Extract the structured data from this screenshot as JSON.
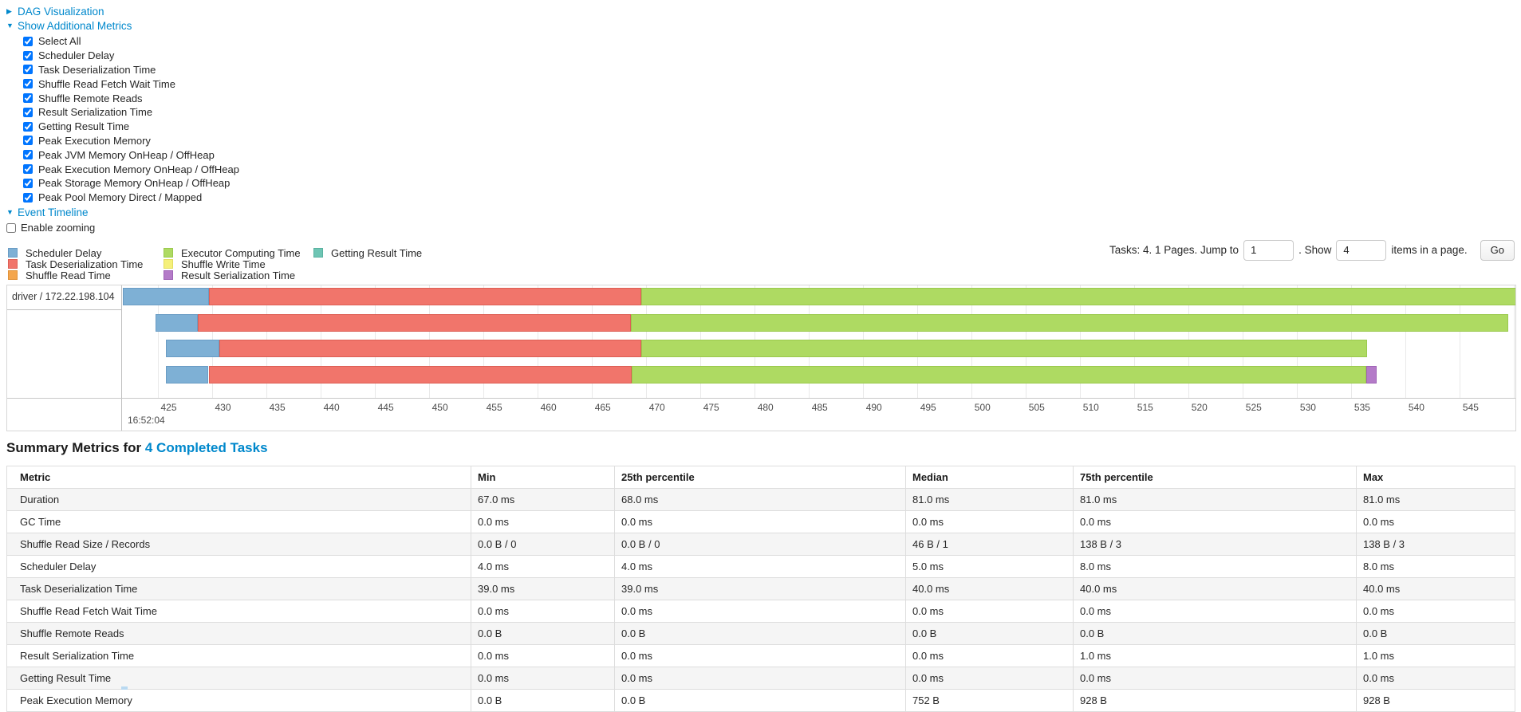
{
  "toggles": {
    "dag": "DAG Visualization",
    "metrics": "Show Additional Metrics",
    "timeline": "Event Timeline"
  },
  "metric_checkboxes": [
    {
      "label": "Select All",
      "checked": true
    },
    {
      "label": "Scheduler Delay",
      "checked": true
    },
    {
      "label": "Task Deserialization Time",
      "checked": true
    },
    {
      "label": "Shuffle Read Fetch Wait Time",
      "checked": true
    },
    {
      "label": "Shuffle Remote Reads",
      "checked": true
    },
    {
      "label": "Result Serialization Time",
      "checked": true
    },
    {
      "label": "Getting Result Time",
      "checked": true
    },
    {
      "label": "Peak Execution Memory",
      "checked": true
    },
    {
      "label": "Peak JVM Memory OnHeap / OffHeap",
      "checked": true
    },
    {
      "label": "Peak Execution Memory OnHeap / OffHeap",
      "checked": true
    },
    {
      "label": "Peak Storage Memory OnHeap / OffHeap",
      "checked": true
    },
    {
      "label": "Peak Pool Memory Direct / Mapped",
      "checked": true
    }
  ],
  "enable_zooming": {
    "label": "Enable zooming",
    "checked": false
  },
  "colors": {
    "link": "#0088cc",
    "scheduler-delay": {
      "fill": "#7eb0d5",
      "border": "#6a9cc4"
    },
    "task-deserialization": {
      "fill": "#f1756b",
      "border": "#dd5f55"
    },
    "shuffle-read": {
      "fill": "#f4a64d",
      "border": "#e0923a"
    },
    "executor-computing": {
      "fill": "#aeda62",
      "border": "#9bc94e"
    },
    "shuffle-write": {
      "fill": "#f5f07a",
      "border": "#e2dd5f"
    },
    "result-serialization": {
      "fill": "#b47bc8",
      "border": "#a064b6"
    },
    "getting-result": {
      "fill": "#6ec5b4",
      "border": "#59b2a0"
    }
  },
  "legend_columns": [
    [
      {
        "key": "scheduler-delay",
        "label": "Scheduler Delay"
      },
      {
        "key": "task-deserialization",
        "label": "Task Deserialization Time"
      },
      {
        "key": "shuffle-read",
        "label": "Shuffle Read Time"
      }
    ],
    [
      {
        "key": "executor-computing",
        "label": "Executor Computing Time"
      },
      {
        "key": "shuffle-write",
        "label": "Shuffle Write Time"
      },
      {
        "key": "result-serialization",
        "label": "Result Serialization Time"
      }
    ],
    [
      {
        "key": "getting-result",
        "label": "Getting Result Time"
      }
    ]
  ],
  "pagination": {
    "prefix": "Tasks: 4. 1 Pages. Jump to",
    "jump_value": "1",
    "mid": ". Show",
    "show_value": "4",
    "suffix": "items in a page.",
    "go_label": "Go"
  },
  "chart_data": {
    "type": "timeline-gantt",
    "group_label": "driver / 172.22.198.104",
    "axis": {
      "min": 421.8,
      "max": 550.3,
      "tick_start": 425,
      "tick_end": 550,
      "tick_step": 5,
      "major_label": "16:52:04",
      "unit": "ms within second 16:52:04"
    },
    "tasks": [
      {
        "segments": [
          {
            "type": "scheduler-delay",
            "start": 421.8,
            "end": 429.7
          },
          {
            "type": "task-deserialization",
            "start": 429.7,
            "end": 469.6
          },
          {
            "type": "executor-computing",
            "start": 469.6,
            "end": 550.3
          }
        ]
      },
      {
        "segments": [
          {
            "type": "scheduler-delay",
            "start": 424.8,
            "end": 428.7
          },
          {
            "type": "task-deserialization",
            "start": 428.7,
            "end": 468.6
          },
          {
            "type": "executor-computing",
            "start": 468.6,
            "end": 549.5
          }
        ]
      },
      {
        "segments": [
          {
            "type": "scheduler-delay",
            "start": 425.8,
            "end": 430.7
          },
          {
            "type": "task-deserialization",
            "start": 430.7,
            "end": 469.6
          },
          {
            "type": "executor-computing",
            "start": 469.6,
            "end": 536.5
          }
        ]
      },
      {
        "segments": [
          {
            "type": "scheduler-delay",
            "start": 425.8,
            "end": 429.7
          },
          {
            "type": "task-deserialization",
            "start": 429.7,
            "end": 468.7
          },
          {
            "type": "executor-computing",
            "start": 468.7,
            "end": 536.4
          },
          {
            "type": "result-serialization",
            "start": 536.4,
            "end": 537.4
          }
        ]
      }
    ]
  },
  "summary": {
    "title_prefix": "Summary Metrics for",
    "title_link": "4 Completed Tasks",
    "headers": [
      "Metric",
      "Min",
      "25th percentile",
      "Median",
      "75th percentile",
      "Max"
    ],
    "rows": [
      [
        "Duration",
        "67.0 ms",
        "68.0 ms",
        "81.0 ms",
        "81.0 ms",
        "81.0 ms"
      ],
      [
        "GC Time",
        "0.0 ms",
        "0.0 ms",
        "0.0 ms",
        "0.0 ms",
        "0.0 ms"
      ],
      [
        "Shuffle Read Size / Records",
        "0.0 B / 0",
        "0.0 B / 0",
        "46 B / 1",
        "138 B / 3",
        "138 B / 3"
      ],
      [
        "Scheduler Delay",
        "4.0 ms",
        "4.0 ms",
        "5.0 ms",
        "8.0 ms",
        "8.0 ms"
      ],
      [
        "Task Deserialization Time",
        "39.0 ms",
        "39.0 ms",
        "40.0 ms",
        "40.0 ms",
        "40.0 ms"
      ],
      [
        "Shuffle Read Fetch Wait Time",
        "0.0 ms",
        "0.0 ms",
        "0.0 ms",
        "0.0 ms",
        "0.0 ms"
      ],
      [
        "Shuffle Remote Reads",
        "0.0 B",
        "0.0 B",
        "0.0 B",
        "0.0 B",
        "0.0 B"
      ],
      [
        "Result Serialization Time",
        "0.0 ms",
        "0.0 ms",
        "0.0 ms",
        "1.0 ms",
        "1.0 ms"
      ],
      [
        "Getting Result Time",
        "0.0 ms",
        "0.0 ms",
        "0.0 ms",
        "0.0 ms",
        "0.0 ms"
      ],
      [
        "Peak Execution Memory",
        "0.0 B",
        "0.0 B",
        "752 B",
        "928 B",
        "928 B"
      ]
    ]
  }
}
